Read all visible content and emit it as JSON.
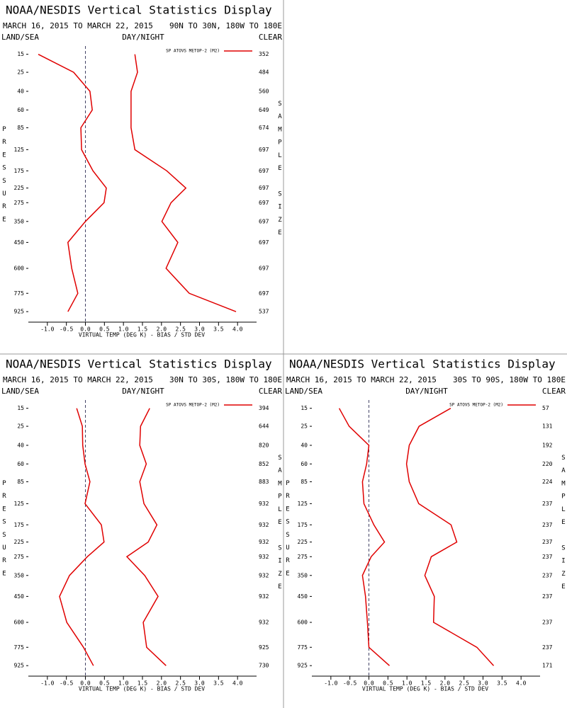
{
  "chart_data": [
    {
      "type": "line",
      "title": "NOAA/NESDIS Vertical Statistics Display",
      "date_range": "MARCH 16, 2015 TO MARCH 22, 2015",
      "region": "90N TO 30N, 180W TO 180E",
      "left_header": "LAND/SEA",
      "center_header": "DAY/NIGHT",
      "right_header": "CLEAR",
      "ylabel": "PRESSURE",
      "y2label": "SAMPLE SIZE",
      "xlabel": "VIRTUAL TEMP (DEG K) - BIAS / STD DEV",
      "y": [
        15,
        25,
        40,
        60,
        85,
        125,
        175,
        225,
        275,
        350,
        450,
        600,
        775,
        925
      ],
      "ylim": [
        10,
        1000
      ],
      "yscale": "power",
      "y_power": 0.286,
      "yticks": [
        15,
        25,
        40,
        60,
        85,
        125,
        175,
        225,
        275,
        350,
        450,
        600,
        775,
        925
      ],
      "xlim": [
        -1.5,
        4.5
      ],
      "xticks": [
        {
          "value": -1,
          "label": "-1.0"
        },
        -0.5,
        {
          "value": 0,
          "label": "0.0"
        },
        0.5,
        {
          "value": 1,
          "label": "1.0"
        },
        1.5,
        {
          "value": 2,
          "label": "2.0"
        },
        2.5,
        {
          "value": 3,
          "label": "3.0"
        },
        3.5,
        {
          "value": 4,
          "label": "4.0"
        }
      ],
      "series": [
        {
          "name": "SP ATOVS METOP-2 (M2)",
          "color": "#e00000",
          "values": [
            -1.24,
            -0.31,
            0.12,
            0.18,
            -0.12,
            -0.1,
            0.2,
            0.55,
            0.49,
            0.0,
            -0.46,
            -0.36,
            -0.2,
            -0.46
          ],
          "std_dev": [
            1.3,
            1.37,
            1.2,
            1.2,
            1.2,
            1.3,
            2.14,
            2.64,
            2.25,
            2.01,
            2.43,
            2.12,
            2.73,
            3.96
          ]
        }
      ],
      "sample_size": [
        352,
        484,
        560,
        649,
        674,
        697,
        697,
        697,
        697,
        697,
        697,
        697,
        697,
        537
      ]
    },
    {
      "type": "line",
      "title": "NOAA/NESDIS Vertical Statistics Display",
      "date_range": "MARCH 16, 2015 TO MARCH 22, 2015",
      "region": "30N TO 30S, 180W TO 180E",
      "left_header": "LAND/SEA",
      "center_header": "DAY/NIGHT",
      "right_header": "CLEAR",
      "ylabel": "PRESSURE",
      "y2label": "SAMPLE SIZE",
      "xlabel": "VIRTUAL TEMP (DEG K) - BIAS / STD DEV",
      "y": [
        15,
        25,
        40,
        60,
        85,
        125,
        175,
        225,
        275,
        350,
        450,
        600,
        775,
        925
      ],
      "ylim": [
        10,
        1000
      ],
      "yscale": "power",
      "y_power": 0.286,
      "yticks": [
        15,
        25,
        40,
        60,
        85,
        125,
        175,
        225,
        275,
        350,
        450,
        600,
        775,
        925
      ],
      "xlim": [
        -1.5,
        4.5
      ],
      "xticks": [
        {
          "value": -1,
          "label": "-1.0"
        },
        -0.5,
        {
          "value": 0,
          "label": "0.0"
        },
        0.5,
        {
          "value": 1,
          "label": "1.0"
        },
        1.5,
        {
          "value": 2,
          "label": "2.0"
        },
        2.5,
        {
          "value": 3,
          "label": "3.0"
        },
        3.5,
        {
          "value": 4,
          "label": "4.0"
        }
      ],
      "series": [
        {
          "name": "SP ATOVS METOP-2 (M2)",
          "color": "#e00000",
          "values": [
            -0.23,
            -0.08,
            -0.07,
            -0.01,
            0.12,
            -0.01,
            0.42,
            0.49,
            0.05,
            -0.42,
            -0.68,
            -0.49,
            -0.05,
            0.21
          ],
          "std_dev": [
            1.69,
            1.45,
            1.43,
            1.6,
            1.43,
            1.54,
            1.88,
            1.65,
            1.09,
            1.56,
            1.91,
            1.52,
            1.61,
            2.12
          ]
        }
      ],
      "sample_size": [
        394,
        644,
        820,
        852,
        883,
        932,
        932,
        932,
        932,
        932,
        932,
        932,
        925,
        730
      ]
    },
    {
      "type": "line",
      "title": "NOAA/NESDIS Vertical Statistics Display",
      "date_range": "MARCH 16, 2015 TO MARCH 22, 2015",
      "region": "30S TO 90S, 180W TO 180E",
      "left_header": "LAND/SEA",
      "center_header": "DAY/NIGHT",
      "right_header": "CLEAR",
      "ylabel": "PRESSURE",
      "y2label": "SAMPLE SIZE",
      "xlabel": "VIRTUAL TEMP (DEG K) - BIAS / STD DEV",
      "y": [
        15,
        25,
        40,
        60,
        85,
        125,
        175,
        225,
        275,
        350,
        450,
        600,
        775,
        925
      ],
      "ylim": [
        10,
        1000
      ],
      "yscale": "power",
      "y_power": 0.286,
      "yticks": [
        15,
        25,
        40,
        60,
        85,
        125,
        175,
        225,
        275,
        350,
        450,
        600,
        775,
        925
      ],
      "xlim": [
        -1.5,
        4.5
      ],
      "xticks": [
        {
          "value": -1,
          "label": "-1.0"
        },
        -0.5,
        {
          "value": 0,
          "label": "0.0"
        },
        0.5,
        {
          "value": 1,
          "label": "1.0"
        },
        1.5,
        {
          "value": 2,
          "label": "2.0"
        },
        2.5,
        {
          "value": 3,
          "label": "3.0"
        },
        3.5,
        {
          "value": 4,
          "label": "4.0"
        }
      ],
      "series": [
        {
          "name": "SP ATOVS METOP-2 (M2)",
          "color": "#e00000",
          "values": [
            -0.78,
            -0.52,
            0.0,
            -0.06,
            -0.17,
            -0.13,
            0.13,
            0.41,
            0.06,
            -0.17,
            -0.09,
            -0.04,
            0.0,
            0.54
          ],
          "std_dev": [
            2.15,
            1.32,
            1.06,
            0.99,
            1.06,
            1.31,
            2.16,
            2.31,
            1.64,
            1.47,
            1.72,
            1.7,
            2.84,
            3.28
          ]
        }
      ],
      "sample_size": [
        57,
        131,
        192,
        220,
        224,
        237,
        237,
        237,
        237,
        237,
        237,
        237,
        237,
        171
      ]
    }
  ]
}
